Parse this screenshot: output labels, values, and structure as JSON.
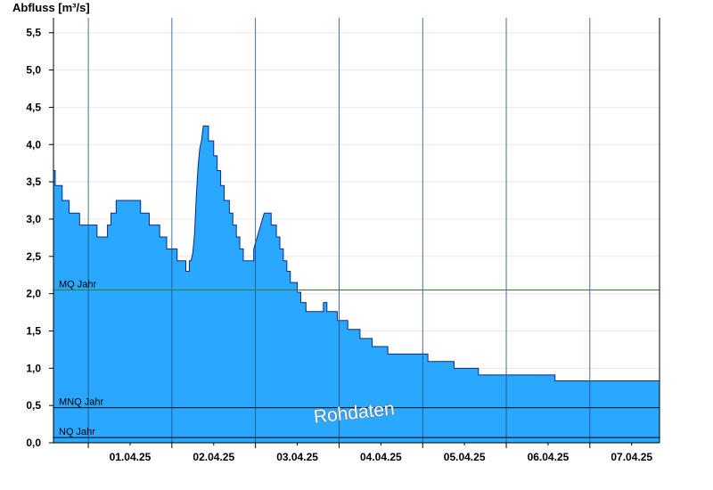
{
  "chart_data": {
    "type": "area",
    "ylabel": "Abfluss [m³/s]",
    "ylim": [
      0,
      5.7
    ],
    "xlim": [
      "2025-03-31T14:00",
      "2025-04-07T20:00"
    ],
    "yticks": [
      {
        "value": 0.0,
        "label": "0,0"
      },
      {
        "value": 0.5,
        "label": "0,5"
      },
      {
        "value": 1.0,
        "label": "1,0"
      },
      {
        "value": 1.5,
        "label": "1,5"
      },
      {
        "value": 2.0,
        "label": "2,0"
      },
      {
        "value": 2.5,
        "label": "2,5"
      },
      {
        "value": 3.0,
        "label": "3,0"
      },
      {
        "value": 3.5,
        "label": "3,5"
      },
      {
        "value": 4.0,
        "label": "4,0"
      },
      {
        "value": 4.5,
        "label": "4,5"
      },
      {
        "value": 5.0,
        "label": "5,0"
      },
      {
        "value": 5.5,
        "label": "5,5"
      }
    ],
    "xticks": [
      {
        "value": "2025-04-01T12:00",
        "label": "01.04.25"
      },
      {
        "value": "2025-04-02T12:00",
        "label": "02.04.25"
      },
      {
        "value": "2025-04-03T12:00",
        "label": "03.04.25"
      },
      {
        "value": "2025-04-04T12:00",
        "label": "04.04.25"
      },
      {
        "value": "2025-04-05T12:00",
        "label": "05.04.25"
      },
      {
        "value": "2025-04-06T12:00",
        "label": "06.04.25"
      },
      {
        "value": "2025-04-07T12:00",
        "label": "07.04.25"
      }
    ],
    "day_lines": [
      "2025-04-01T00:00",
      "2025-04-02T00:00",
      "2025-04-03T00:00",
      "2025-04-04T00:00",
      "2025-04-05T00:00",
      "2025-04-06T00:00",
      "2025-04-07T00:00"
    ],
    "reference_lines": [
      {
        "name": "MQ Jahr",
        "value": 2.05,
        "color": "#2e7d32"
      },
      {
        "name": "MNQ Jahr",
        "value": 0.47,
        "color": "#000000"
      },
      {
        "name": "NQ Jahr",
        "value": 0.07,
        "color": "#000000"
      }
    ],
    "series": [
      {
        "fill": "#2aa7ff",
        "stroke": "#0a2a8c",
        "points": [
          [
            "2025-03-31T14:00",
            3.65
          ],
          [
            "2025-03-31T14:30",
            3.65
          ],
          [
            "2025-03-31T14:30",
            3.45
          ],
          [
            "2025-03-31T16:30",
            3.45
          ],
          [
            "2025-03-31T16:30",
            3.25
          ],
          [
            "2025-03-31T18:30",
            3.25
          ],
          [
            "2025-03-31T18:30",
            3.08
          ],
          [
            "2025-03-31T21:30",
            3.08
          ],
          [
            "2025-03-31T21:30",
            2.92
          ],
          [
            "2025-04-01T02:30",
            2.92
          ],
          [
            "2025-04-01T02:30",
            2.76
          ],
          [
            "2025-04-01T05:30",
            2.76
          ],
          [
            "2025-04-01T05:30",
            2.92
          ],
          [
            "2025-04-01T06:30",
            2.92
          ],
          [
            "2025-04-01T06:30",
            3.08
          ],
          [
            "2025-04-01T08:00",
            3.08
          ],
          [
            "2025-04-01T08:00",
            3.25
          ],
          [
            "2025-04-01T15:00",
            3.25
          ],
          [
            "2025-04-01T15:00",
            3.08
          ],
          [
            "2025-04-01T17:30",
            3.08
          ],
          [
            "2025-04-01T17:30",
            2.92
          ],
          [
            "2025-04-01T20:30",
            2.92
          ],
          [
            "2025-04-01T20:30",
            2.76
          ],
          [
            "2025-04-01T22:30",
            2.76
          ],
          [
            "2025-04-01T22:30",
            2.6
          ],
          [
            "2025-04-02T01:30",
            2.6
          ],
          [
            "2025-04-02T01:30",
            2.44
          ],
          [
            "2025-04-02T04:00",
            2.44
          ],
          [
            "2025-04-02T04:00",
            2.3
          ],
          [
            "2025-04-02T05:00",
            2.3
          ],
          [
            "2025-04-02T05:00",
            2.44
          ],
          [
            "2025-04-02T05:30",
            2.44
          ],
          [
            "2025-04-02T06:00",
            2.55
          ],
          [
            "2025-04-02T06:30",
            2.8
          ],
          [
            "2025-04-02T07:00",
            3.3
          ],
          [
            "2025-04-02T07:30",
            3.7
          ],
          [
            "2025-04-02T08:00",
            3.95
          ],
          [
            "2025-04-02T08:30",
            4.05
          ],
          [
            "2025-04-02T09:00",
            4.25
          ],
          [
            "2025-04-02T10:30",
            4.25
          ],
          [
            "2025-04-02T10:30",
            4.05
          ],
          [
            "2025-04-02T12:00",
            4.05
          ],
          [
            "2025-04-02T12:00",
            3.85
          ],
          [
            "2025-04-02T13:00",
            3.85
          ],
          [
            "2025-04-02T13:00",
            3.65
          ],
          [
            "2025-04-02T14:00",
            3.65
          ],
          [
            "2025-04-02T14:00",
            3.45
          ],
          [
            "2025-04-02T15:00",
            3.45
          ],
          [
            "2025-04-02T15:00",
            3.25
          ],
          [
            "2025-04-02T16:30",
            3.25
          ],
          [
            "2025-04-02T16:30",
            3.08
          ],
          [
            "2025-04-02T17:30",
            3.08
          ],
          [
            "2025-04-02T17:30",
            2.92
          ],
          [
            "2025-04-02T18:30",
            2.92
          ],
          [
            "2025-04-02T18:30",
            2.76
          ],
          [
            "2025-04-02T19:30",
            2.76
          ],
          [
            "2025-04-02T19:30",
            2.6
          ],
          [
            "2025-04-02T20:30",
            2.6
          ],
          [
            "2025-04-02T20:30",
            2.44
          ],
          [
            "2025-04-02T23:30",
            2.44
          ],
          [
            "2025-04-02T23:30",
            2.6
          ],
          [
            "2025-04-03T00:30",
            2.76
          ],
          [
            "2025-04-03T01:30",
            2.92
          ],
          [
            "2025-04-03T02:30",
            3.08
          ],
          [
            "2025-04-03T04:30",
            3.08
          ],
          [
            "2025-04-03T04:30",
            2.92
          ],
          [
            "2025-04-03T06:00",
            2.92
          ],
          [
            "2025-04-03T06:00",
            2.76
          ],
          [
            "2025-04-03T07:00",
            2.76
          ],
          [
            "2025-04-03T07:00",
            2.6
          ],
          [
            "2025-04-03T08:00",
            2.6
          ],
          [
            "2025-04-03T08:00",
            2.44
          ],
          [
            "2025-04-03T09:00",
            2.44
          ],
          [
            "2025-04-03T09:00",
            2.3
          ],
          [
            "2025-04-03T10:00",
            2.3
          ],
          [
            "2025-04-03T10:00",
            2.15
          ],
          [
            "2025-04-03T12:00",
            2.15
          ],
          [
            "2025-04-03T12:00",
            2.02
          ],
          [
            "2025-04-03T13:00",
            2.02
          ],
          [
            "2025-04-03T13:00",
            1.88
          ],
          [
            "2025-04-03T14:30",
            1.88
          ],
          [
            "2025-04-03T14:30",
            1.76
          ],
          [
            "2025-04-03T19:30",
            1.76
          ],
          [
            "2025-04-03T19:30",
            1.88
          ],
          [
            "2025-04-03T20:30",
            1.88
          ],
          [
            "2025-04-03T20:30",
            1.76
          ],
          [
            "2025-04-03T23:30",
            1.76
          ],
          [
            "2025-04-03T23:30",
            1.64
          ],
          [
            "2025-04-04T02:30",
            1.64
          ],
          [
            "2025-04-04T02:30",
            1.52
          ],
          [
            "2025-04-04T06:00",
            1.52
          ],
          [
            "2025-04-04T06:00",
            1.4
          ],
          [
            "2025-04-04T09:30",
            1.4
          ],
          [
            "2025-04-04T09:30",
            1.29
          ],
          [
            "2025-04-04T14:00",
            1.29
          ],
          [
            "2025-04-04T14:00",
            1.19
          ],
          [
            "2025-04-05T01:30",
            1.19
          ],
          [
            "2025-04-05T01:30",
            1.09
          ],
          [
            "2025-04-05T09:00",
            1.09
          ],
          [
            "2025-04-05T09:00",
            1.0
          ],
          [
            "2025-04-05T16:00",
            1.0
          ],
          [
            "2025-04-05T16:00",
            0.91
          ],
          [
            "2025-04-06T14:00",
            0.91
          ],
          [
            "2025-04-06T14:00",
            0.83
          ],
          [
            "2025-04-07T20:00",
            0.83
          ]
        ]
      }
    ],
    "watermark": "Rohdaten"
  }
}
